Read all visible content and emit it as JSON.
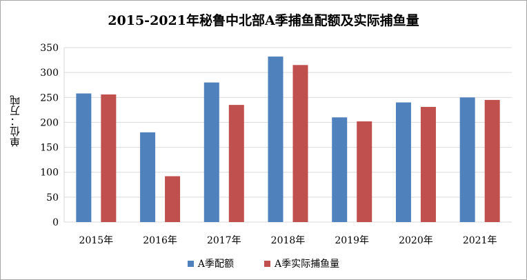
{
  "chart_data": {
    "type": "bar",
    "title": "2015-2021年秘鲁中北部A季捕鱼配额及实际捕鱼量",
    "xlabel": "",
    "ylabel": "单位：万吨",
    "ylim": [
      0,
      350
    ],
    "yticks": [
      0,
      50,
      100,
      150,
      200,
      250,
      300,
      350
    ],
    "categories": [
      "2015年",
      "2016年",
      "2017年",
      "2018年",
      "2019年",
      "2020年",
      "2021年"
    ],
    "series": [
      {
        "name": "A季配额",
        "color": "#4f81bd",
        "values": [
          258,
          180,
          280,
          332,
          210,
          240,
          250
        ]
      },
      {
        "name": "A季实际捕鱼量",
        "color": "#c0504d",
        "values": [
          256,
          92,
          235,
          315,
          202,
          231,
          245
        ]
      }
    ],
    "grid": true,
    "legend_position": "bottom"
  }
}
